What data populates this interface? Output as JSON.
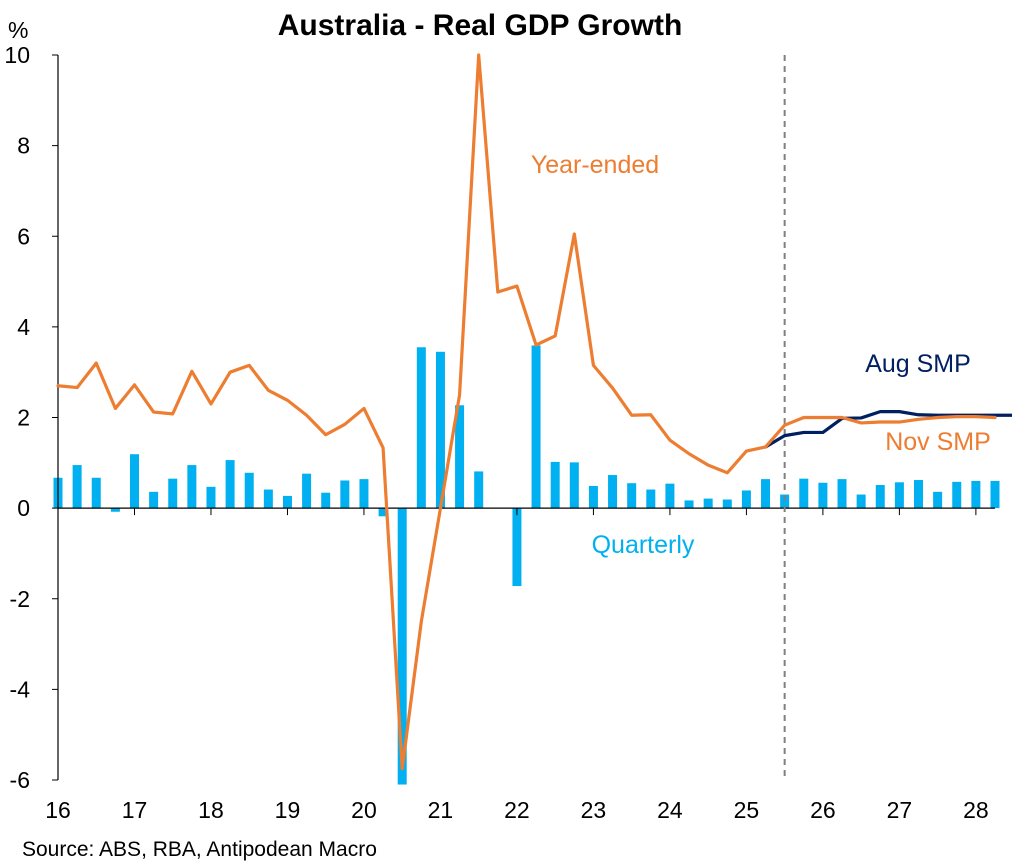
{
  "chart_data": {
    "type": "bar",
    "title": "Australia - Real GDP Growth",
    "ylabel": "%",
    "ylim": [
      -6,
      10
    ],
    "yticks": [
      "10",
      "8",
      "6",
      "4",
      "2",
      "0",
      "-2",
      "-4",
      "-6"
    ],
    "xtick_labels": [
      "16",
      "17",
      "18",
      "19",
      "20",
      "21",
      "22",
      "23",
      "24",
      "25",
      "26",
      "27",
      "28"
    ],
    "x_quarter_start": "2016 Q1",
    "forecast_divider_x": 2025.5,
    "series": [
      {
        "name": "Quarterly",
        "type": "bar",
        "color": "#00b0f0",
        "values": [
          0.67,
          0.95,
          0.67,
          -0.08,
          1.19,
          0.36,
          0.65,
          0.95,
          0.47,
          1.06,
          0.78,
          0.41,
          0.27,
          0.76,
          0.34,
          0.61,
          0.64,
          -0.18,
          -6.1,
          3.55,
          3.45,
          2.27,
          0.81,
          0.0,
          -1.72,
          3.59,
          1.02,
          1.01,
          0.49,
          0.73,
          0.55,
          0.41,
          0.54,
          0.17,
          0.21,
          0.19,
          0.39,
          0.64,
          0.3,
          0.65,
          0.56,
          0.64,
          0.3,
          0.51,
          0.57,
          0.62,
          0.36,
          0.58,
          0.6,
          0.6
        ]
      },
      {
        "name": "Year-ended",
        "type": "line",
        "color": "#ed7d31",
        "values": [
          2.7,
          2.66,
          3.2,
          2.2,
          2.72,
          2.12,
          2.08,
          3.02,
          2.3,
          3.0,
          3.15,
          2.6,
          2.38,
          2.05,
          1.62,
          1.85,
          2.2,
          1.33,
          -5.75,
          -2.5,
          0.0,
          2.5,
          10.0,
          4.77,
          4.9,
          3.6,
          3.8,
          6.05,
          3.15,
          2.65,
          2.05,
          2.06,
          1.5,
          1.2,
          0.95,
          0.78,
          1.26,
          1.35,
          1.83,
          2.0,
          2.0,
          2.0,
          1.88,
          1.9,
          1.9,
          1.96,
          2.0,
          2.02,
          2.02,
          2.0
        ]
      },
      {
        "name": "Aug SMP",
        "type": "line",
        "color": "#002060",
        "x_start_index": 37,
        "values": [
          1.35,
          1.6,
          1.67,
          1.67,
          1.98,
          1.99,
          2.13,
          2.13,
          2.06,
          2.05,
          2.05,
          2.05,
          2.05,
          2.05
        ]
      }
    ],
    "annotations": [
      "Year-ended",
      "Aug SMP",
      "Nov SMP",
      "Quarterly"
    ],
    "source": "Source: ABS, RBA, Antipodean Macro",
    "grid": false
  }
}
